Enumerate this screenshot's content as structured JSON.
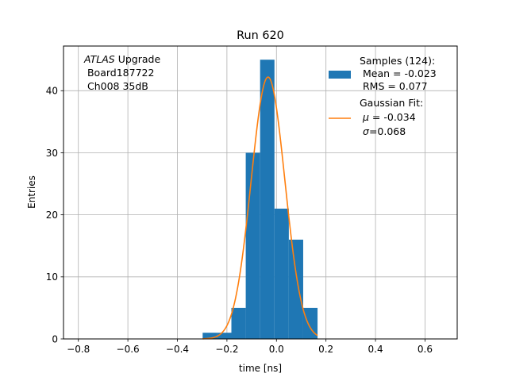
{
  "chart_data": {
    "type": "bar",
    "title": "Run 620",
    "xlabel": "time [ns]",
    "ylabel": "Entries",
    "xlim": [
      -0.86,
      0.73
    ],
    "ylim": [
      0,
      47.2
    ],
    "grid": true,
    "xticks": [
      -0.8,
      -0.6,
      -0.4,
      -0.2,
      0.0,
      0.2,
      0.4,
      0.6
    ],
    "xtick_labels": [
      "−0.8",
      "−0.6",
      "−0.4",
      "−0.2",
      "0.0",
      "0.2",
      "0.4",
      "0.6"
    ],
    "yticks": [
      0,
      10,
      20,
      30,
      40
    ],
    "ytick_labels": [
      "0",
      "10",
      "20",
      "30",
      "40"
    ],
    "histogram": {
      "name": "Samples (124):",
      "color": "#1f77b4",
      "bins": [
        {
          "x0": -0.298,
          "x1": -0.24,
          "count": 1
        },
        {
          "x0": -0.24,
          "x1": -0.182,
          "count": 1
        },
        {
          "x0": -0.182,
          "x1": -0.124,
          "count": 5
        },
        {
          "x0": -0.124,
          "x1": -0.066,
          "count": 30
        },
        {
          "x0": -0.066,
          "x1": -0.008,
          "count": 45
        },
        {
          "x0": -0.008,
          "x1": 0.05,
          "count": 21
        },
        {
          "x0": 0.05,
          "x1": 0.108,
          "count": 16
        },
        {
          "x0": 0.108,
          "x1": 0.166,
          "count": 5
        }
      ]
    },
    "fit": {
      "name": "Gaussian Fit:",
      "color": "#ff7f0e",
      "mu": -0.034,
      "sigma": 0.068,
      "peak": 42.2,
      "x_range": [
        -0.298,
        0.166
      ]
    },
    "annotation": {
      "experiment": "ATLAS",
      "experiment_suffix": " Upgrade",
      "line2": " Board187722",
      "line3": " Ch008 35dB"
    },
    "legend": {
      "position": "top-right",
      "hist_lines": [
        "Samples (124):",
        " Mean = -0.023",
        " RMS = 0.077"
      ],
      "fit_title": "Gaussian Fit:",
      "fit_mu_symbol": "μ",
      "fit_mu_text": " = -0.034",
      "fit_sigma_symbol": "σ",
      "fit_sigma_text": "=0.068"
    }
  }
}
